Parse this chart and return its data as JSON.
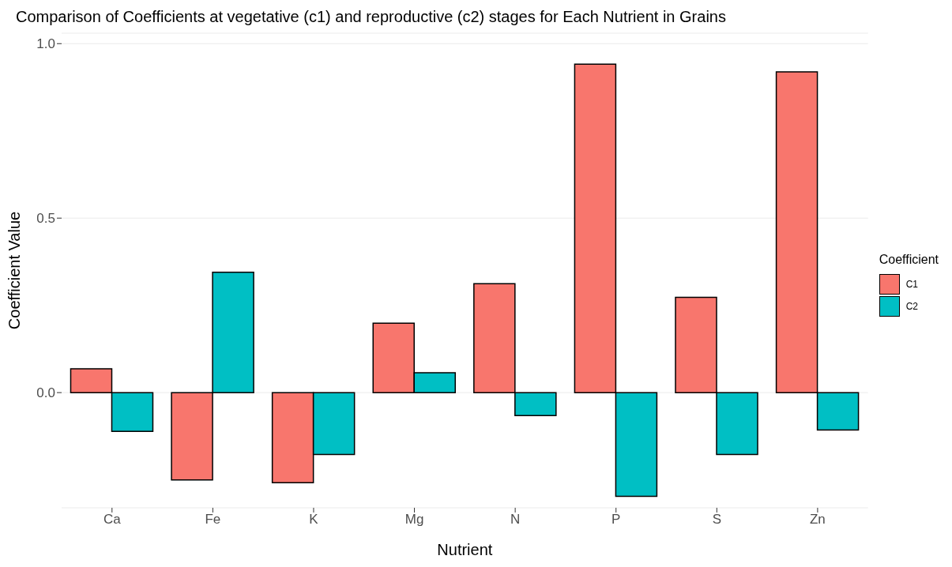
{
  "chart_data": {
    "type": "bar",
    "title": "Comparison of Coefficients at vegetative (c1) and reproductive (c2) stages for Each Nutrient in Grains",
    "xlabel": "Nutrient",
    "ylabel": "Coefficient Value",
    "legend_title": "Coefficient",
    "categories": [
      "Ca",
      "Fe",
      "K",
      "Mg",
      "N",
      "P",
      "S",
      "Zn"
    ],
    "series": [
      {
        "name": "C1",
        "color": "#f8766d",
        "values": [
          0.068,
          -0.25,
          -0.258,
          0.199,
          0.312,
          0.941,
          0.273,
          0.919
        ]
      },
      {
        "name": "C2",
        "color": "#00bfc4",
        "values": [
          -0.111,
          0.345,
          -0.177,
          0.057,
          -0.066,
          -0.297,
          -0.177,
          -0.107
        ]
      }
    ],
    "ylim": [
      -0.33,
      1.03
    ],
    "yticks": [
      {
        "value": 0,
        "label": "0.0"
      },
      {
        "value": 0.5,
        "label": "0.5"
      },
      {
        "value": 1,
        "label": "1.0"
      }
    ],
    "grid": "y",
    "legend": "right"
  }
}
